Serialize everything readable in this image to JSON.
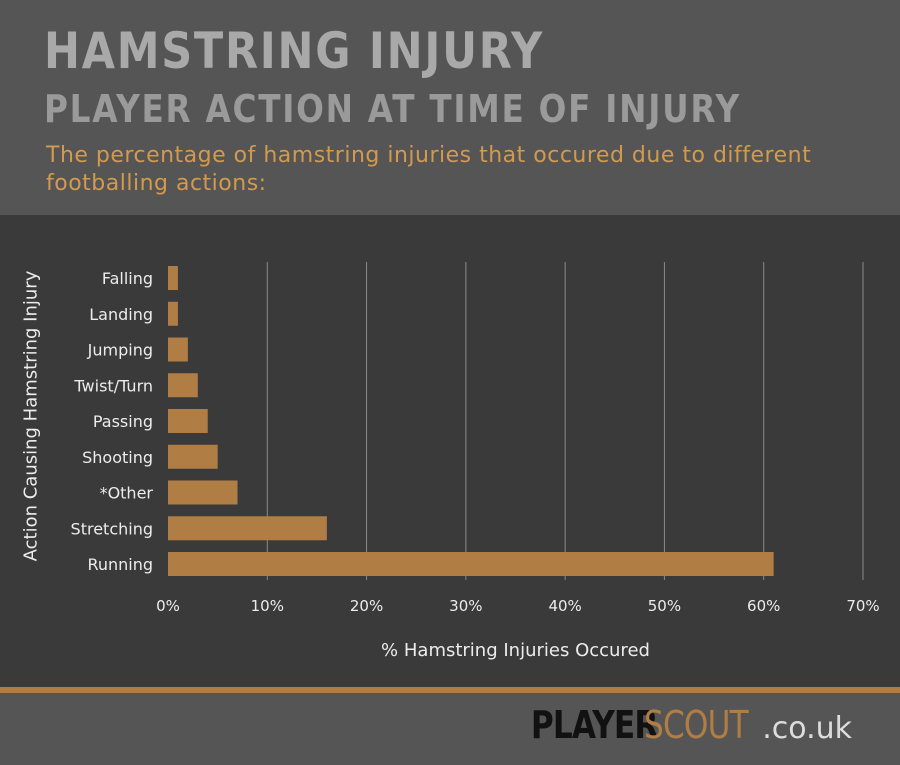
{
  "header": {
    "title": "HAMSTRING INJURY",
    "subtitle_title": "PLAYER ACTION AT TIME OF INJURY",
    "description": "The percentage of hamstring injuries that occured due to different footballing actions:"
  },
  "chart_data": {
    "type": "bar",
    "orientation": "horizontal",
    "categories": [
      "Falling",
      "Landing",
      "Jumping",
      "Twist/Turn",
      "Passing",
      "Shooting",
      "*Other",
      "Stretching",
      "Running"
    ],
    "values": [
      1,
      1,
      2,
      3,
      4,
      5,
      7,
      16,
      61
    ],
    "xlabel": "% Hamstring Injuries Occured",
    "ylabel": "Action Causing Hamstring Injury",
    "xlim": [
      0,
      70
    ],
    "xticks": [
      "0%",
      "10%",
      "20%",
      "30%",
      "40%",
      "50%",
      "60%",
      "70%"
    ],
    "grid": true,
    "colors": {
      "bar": "#b07d45",
      "grid": "#8a8a8a",
      "text": "#ececec"
    }
  },
  "footer": {
    "logo_player": "PLAYER",
    "logo_scout": "SCOUT",
    "logo_domain": ".co.uk"
  }
}
